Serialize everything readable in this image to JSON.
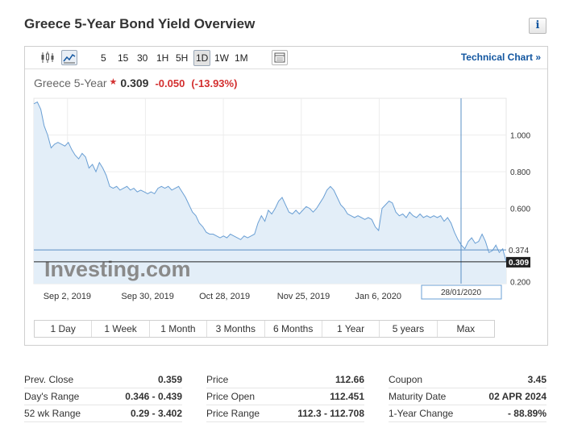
{
  "header": {
    "title": "Greece 5-Year Bond Yield Overview",
    "info_label": "i"
  },
  "toolbar": {
    "timeframes": [
      "5",
      "15",
      "30",
      "1H",
      "5H",
      "1D",
      "1W",
      "1M"
    ],
    "selected_timeframe": "1D",
    "technical_chart_label": "Technical Chart »"
  },
  "quote": {
    "name": "Greece 5-Year",
    "star": "★",
    "price": "0.309",
    "change": "-0.050",
    "change_pct": "(-13.93%)"
  },
  "chart_data": {
    "type": "area",
    "x_tick_labels": [
      "Sep 2, 2019",
      "Sep 30, 2019",
      "Oct 28, 2019",
      "Nov 25, 2019",
      "Jan 6, 2020"
    ],
    "y_tick_labels": [
      "1.000",
      "0.800",
      "0.600",
      "0.200"
    ],
    "ylim": [
      0.19,
      1.2
    ],
    "crosshair": {
      "x_label": "28/01/2020",
      "y_label": "0.374",
      "y_value": 0.374
    },
    "last_price": {
      "label": "0.309",
      "value": 0.309
    },
    "watermark": "Investing.com",
    "series": [
      {
        "values": [
          1.17,
          1.18,
          1.14,
          1.05,
          1.0,
          0.93,
          0.95,
          0.96,
          0.95,
          0.94,
          0.96,
          0.92,
          0.89,
          0.87,
          0.9,
          0.88,
          0.82,
          0.84,
          0.8,
          0.85,
          0.82,
          0.78,
          0.72,
          0.71,
          0.72,
          0.7,
          0.71,
          0.72,
          0.7,
          0.71,
          0.69,
          0.7,
          0.69,
          0.68,
          0.69,
          0.68,
          0.71,
          0.72,
          0.71,
          0.72,
          0.7,
          0.71,
          0.72,
          0.69,
          0.66,
          0.62,
          0.58,
          0.56,
          0.52,
          0.5,
          0.47,
          0.46,
          0.46,
          0.45,
          0.44,
          0.45,
          0.44,
          0.46,
          0.45,
          0.44,
          0.43,
          0.45,
          0.44,
          0.45,
          0.46,
          0.52,
          0.56,
          0.53,
          0.59,
          0.57,
          0.6,
          0.64,
          0.66,
          0.62,
          0.58,
          0.57,
          0.59,
          0.57,
          0.59,
          0.61,
          0.6,
          0.58,
          0.6,
          0.63,
          0.66,
          0.7,
          0.72,
          0.7,
          0.66,
          0.62,
          0.6,
          0.57,
          0.56,
          0.55,
          0.56,
          0.55,
          0.54,
          0.55,
          0.54,
          0.5,
          0.48,
          0.6,
          0.62,
          0.64,
          0.63,
          0.58,
          0.56,
          0.57,
          0.55,
          0.58,
          0.56,
          0.55,
          0.57,
          0.55,
          0.56,
          0.55,
          0.56,
          0.55,
          0.56,
          0.53,
          0.55,
          0.52,
          0.47,
          0.43,
          0.4,
          0.38,
          0.42,
          0.44,
          0.41,
          0.42,
          0.46,
          0.42,
          0.36,
          0.37,
          0.4,
          0.36,
          0.38,
          0.31
        ]
      }
    ]
  },
  "range_buttons": [
    "1 Day",
    "1 Week",
    "1 Month",
    "3 Months",
    "6 Months",
    "1 Year",
    "5 years",
    "Max"
  ],
  "stats": {
    "col1": [
      {
        "label": "Prev. Close",
        "value": "0.359"
      },
      {
        "label": "Day's Range",
        "value": "0.346 - 0.439"
      },
      {
        "label": "52 wk Range",
        "value": "0.29 - 3.402"
      }
    ],
    "col2": [
      {
        "label": "Price",
        "value": "112.66"
      },
      {
        "label": "Price Open",
        "value": "112.451"
      },
      {
        "label": "Price Range",
        "value": "112.3 - 112.708"
      }
    ],
    "col3": [
      {
        "label": "Coupon",
        "value": "3.45"
      },
      {
        "label": "Maturity Date",
        "value": "02 APR 2024"
      },
      {
        "label": "1-Year Change",
        "value": "- 88.89%"
      }
    ]
  }
}
